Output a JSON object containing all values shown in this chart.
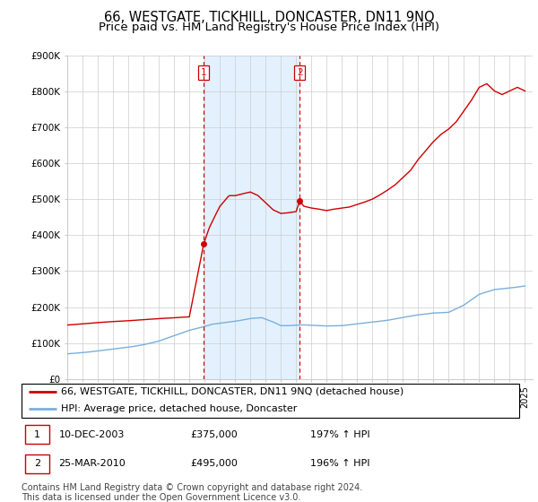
{
  "title": "66, WESTGATE, TICKHILL, DONCASTER, DN11 9NQ",
  "subtitle": "Price paid vs. HM Land Registry's House Price Index (HPI)",
  "ylim": [
    0,
    900000
  ],
  "yticks": [
    0,
    100000,
    200000,
    300000,
    400000,
    500000,
    600000,
    700000,
    800000,
    900000
  ],
  "ytick_labels": [
    "£0",
    "£100K",
    "£200K",
    "£300K",
    "£400K",
    "£500K",
    "£600K",
    "£700K",
    "£800K",
    "£900K"
  ],
  "xlim_start": 1995.0,
  "xlim_end": 2025.5,
  "sale1_x": 2003.94,
  "sale1_price": 375000,
  "sale2_x": 2010.23,
  "sale2_price": 495000,
  "legend_line1": "66, WESTGATE, TICKHILL, DONCASTER, DN11 9NQ (detached house)",
  "legend_line2": "HPI: Average price, detached house, Doncaster",
  "footer": "Contains HM Land Registry data © Crown copyright and database right 2024.\nThis data is licensed under the Open Government Licence v3.0.",
  "red_color": "#cc0000",
  "blue_color": "#7aafdb",
  "shade_color": "#ddeeff",
  "background_color": "#ffffff",
  "grid_color": "#cccccc",
  "title_fontsize": 10.5,
  "subtitle_fontsize": 9.5,
  "tick_fontsize": 7.5,
  "legend_fontsize": 8,
  "footer_fontsize": 7
}
